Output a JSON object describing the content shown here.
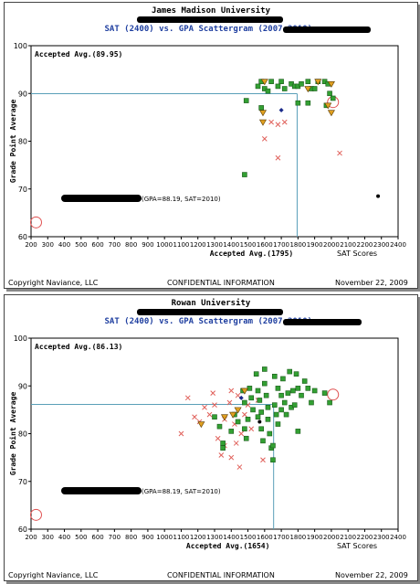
{
  "chart_data": [
    {
      "type": "scatter",
      "title": "James Madison University",
      "subtitle": "SAT (2400) vs. GPA Scattergram (2007-2010):",
      "xlabel": "SAT Scores",
      "ylabel": "Grade Point Average",
      "xlim": [
        200,
        2400
      ],
      "ylim": [
        60,
        100
      ],
      "x_ticks": [
        200,
        300,
        400,
        500,
        600,
        700,
        800,
        900,
        1000,
        1100,
        1200,
        1300,
        1400,
        1500,
        1600,
        1700,
        1800,
        1900,
        2000,
        2100,
        2200,
        2300,
        2400
      ],
      "y_ticks": [
        60,
        70,
        80,
        90,
        100
      ],
      "accepted_avg_label": "Accepted Avg.(89.95)",
      "accepted_avg_x_label": "Accepted Avg.(1795)",
      "avg_gpa": 89.95,
      "avg_sat": 1795,
      "legend_text": "(GPA=88.19, SAT=2010)",
      "student_marker": {
        "x": 2010,
        "y": 88.19
      },
      "student_marker_left": {
        "x": 230,
        "y": 63
      },
      "footer_left": "Copyright Naviance, LLC",
      "footer_center": "CONFIDENTIAL INFORMATION",
      "footer_right": "November 22, 2009",
      "accepted": [
        [
          1480,
          73
        ],
        [
          1490,
          88.5
        ],
        [
          1560,
          91.5
        ],
        [
          1580,
          92.5
        ],
        [
          1600,
          91
        ],
        [
          1620,
          90.5
        ],
        [
          1640,
          92.5
        ],
        [
          1680,
          91.5
        ],
        [
          1700,
          92.5
        ],
        [
          1720,
          91
        ],
        [
          1760,
          92
        ],
        [
          1780,
          91.5
        ],
        [
          1800,
          91.5
        ],
        [
          1820,
          92
        ],
        [
          1860,
          92.5
        ],
        [
          1880,
          91
        ],
        [
          1900,
          91
        ],
        [
          1920,
          92.5
        ],
        [
          1960,
          92.5
        ],
        [
          1980,
          92
        ],
        [
          1990,
          90
        ],
        [
          2010,
          89
        ],
        [
          1970,
          87.5
        ],
        [
          1860,
          88
        ],
        [
          1800,
          88
        ],
        [
          1580,
          87
        ]
      ],
      "waitlisted": [
        [
          1600,
          92.5
        ],
        [
          1590,
          86
        ],
        [
          1590,
          84
        ],
        [
          1860,
          91
        ],
        [
          1920,
          92.5
        ],
        [
          1980,
          87.5
        ],
        [
          2000,
          92
        ],
        [
          2000,
          86
        ]
      ],
      "denied": [
        [
          1600,
          80.5
        ],
        [
          1640,
          84
        ],
        [
          1680,
          83.5
        ],
        [
          1680,
          76.5
        ],
        [
          1720,
          84
        ],
        [
          2050,
          77.5
        ]
      ],
      "enrolled": [
        [
          1700,
          86.5
        ],
        [
          2280,
          68.5
        ]
      ]
    },
    {
      "type": "scatter",
      "title": "Rowan University",
      "subtitle": "SAT (2400) vs. GPA Scattergram (2007-2010):",
      "xlabel": "SAT Scores",
      "ylabel": "Grade Point Average",
      "xlim": [
        200,
        2400
      ],
      "ylim": [
        60,
        100
      ],
      "x_ticks": [
        200,
        300,
        400,
        500,
        600,
        700,
        800,
        900,
        1000,
        1100,
        1200,
        1300,
        1400,
        1500,
        1600,
        1700,
        1800,
        1900,
        2000,
        2100,
        2200,
        2300,
        2400
      ],
      "y_ticks": [
        60,
        70,
        80,
        90,
        100
      ],
      "accepted_avg_label": "Accepted Avg.(86.13)",
      "accepted_avg_x_label": "Accepted Avg.(1654)",
      "avg_gpa": 86.13,
      "avg_sat": 1654,
      "legend_text": "(GPA=88.19, SAT=2010)",
      "student_marker": {
        "x": 2010,
        "y": 88.19
      },
      "student_marker_left": {
        "x": 230,
        "y": 63
      },
      "footer_left": "Copyright Naviance, LLC",
      "footer_center": "CONFIDENTIAL INFORMATION",
      "footer_right": "November 22, 2009",
      "accepted": [
        [
          1300,
          83.5
        ],
        [
          1330,
          81.5
        ],
        [
          1350,
          78
        ],
        [
          1350,
          77
        ],
        [
          1400,
          80.5
        ],
        [
          1420,
          84
        ],
        [
          1440,
          82.5
        ],
        [
          1470,
          89
        ],
        [
          1480,
          86.5
        ],
        [
          1480,
          81
        ],
        [
          1490,
          79
        ],
        [
          1500,
          83
        ],
        [
          1510,
          89.5
        ],
        [
          1520,
          87.5
        ],
        [
          1530,
          85
        ],
        [
          1550,
          92.5
        ],
        [
          1560,
          89
        ],
        [
          1570,
          87
        ],
        [
          1580,
          84.5
        ],
        [
          1580,
          81
        ],
        [
          1590,
          78.5
        ],
        [
          1600,
          90.5
        ],
        [
          1600,
          93.5
        ],
        [
          1610,
          88
        ],
        [
          1620,
          85.5
        ],
        [
          1620,
          83
        ],
        [
          1630,
          80
        ],
        [
          1640,
          77
        ],
        [
          1650,
          74.5
        ],
        [
          1660,
          92
        ],
        [
          1660,
          86
        ],
        [
          1670,
          84
        ],
        [
          1680,
          89.5
        ],
        [
          1680,
          82
        ],
        [
          1700,
          88
        ],
        [
          1700,
          85
        ],
        [
          1710,
          91.5
        ],
        [
          1720,
          86.5
        ],
        [
          1730,
          84
        ],
        [
          1740,
          88.5
        ],
        [
          1750,
          93
        ],
        [
          1760,
          85.5
        ],
        [
          1770,
          89
        ],
        [
          1780,
          86
        ],
        [
          1790,
          92.5
        ],
        [
          1800,
          80.5
        ],
        [
          1800,
          89.5
        ],
        [
          1820,
          88
        ],
        [
          1840,
          91
        ],
        [
          1860,
          89.5
        ],
        [
          1880,
          86.5
        ],
        [
          1900,
          89
        ],
        [
          1960,
          88.5
        ],
        [
          1990,
          86.5
        ],
        [
          1650,
          77.5
        ],
        [
          1560,
          83.5
        ]
      ],
      "waitlisted": [
        [
          1220,
          82
        ],
        [
          1360,
          83.5
        ],
        [
          1410,
          84
        ],
        [
          1440,
          85
        ],
        [
          1480,
          89
        ]
      ],
      "denied": [
        [
          1100,
          80
        ],
        [
          1140,
          87.5
        ],
        [
          1180,
          83.5
        ],
        [
          1210,
          82.5
        ],
        [
          1240,
          85.5
        ],
        [
          1270,
          84
        ],
        [
          1290,
          88.5
        ],
        [
          1300,
          86
        ],
        [
          1320,
          79
        ],
        [
          1340,
          75.5
        ],
        [
          1360,
          83
        ],
        [
          1390,
          86.5
        ],
        [
          1400,
          89
        ],
        [
          1400,
          75
        ],
        [
          1420,
          82
        ],
        [
          1440,
          88
        ],
        [
          1450,
          73
        ],
        [
          1460,
          80
        ],
        [
          1480,
          84
        ],
        [
          1500,
          86
        ],
        [
          1520,
          81
        ],
        [
          1560,
          87
        ],
        [
          1590,
          74.5
        ],
        [
          1430,
          78
        ],
        [
          1360,
          77.5
        ]
      ],
      "enrolled": [
        [
          1460,
          87.5
        ],
        [
          1570,
          82.5
        ]
      ]
    }
  ]
}
